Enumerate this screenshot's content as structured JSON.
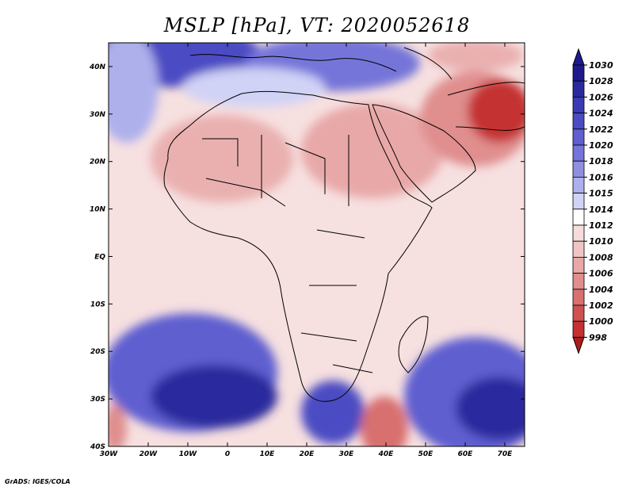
{
  "title": "MSLP [hPa], VT: 2020052618",
  "credit": "GrADS: IGES/COLA",
  "map": {
    "lon_ticks": [
      "30W",
      "20W",
      "10W",
      "0",
      "10E",
      "20E",
      "30E",
      "40E",
      "50E",
      "60E",
      "70E"
    ],
    "lat_ticks": [
      "40S",
      "30S",
      "20S",
      "10S",
      "EQ",
      "10N",
      "20N",
      "30N",
      "40N"
    ],
    "lon_range": [
      -30,
      75
    ],
    "lat_range": [
      -40,
      45
    ]
  },
  "colorbar": {
    "levels": [
      "1030",
      "1028",
      "1026",
      "1024",
      "1022",
      "1020",
      "1018",
      "1016",
      "1015",
      "1014",
      "1012",
      "1010",
      "1008",
      "1006",
      "1004",
      "1002",
      "1000",
      "998"
    ],
    "colors": [
      "#1e1a8c",
      "#2a2a9e",
      "#3a3ab4",
      "#4b4bc3",
      "#5f5fd0",
      "#7474d9",
      "#8f8fe2",
      "#aeb0ec",
      "#d0d2f6",
      "#ffffff",
      "#f6dcdc",
      "#f1c4c4",
      "#e8a8a8",
      "#e08e8e",
      "#d87070",
      "#d05050",
      "#c53030",
      "#ad1c1c"
    ]
  }
}
